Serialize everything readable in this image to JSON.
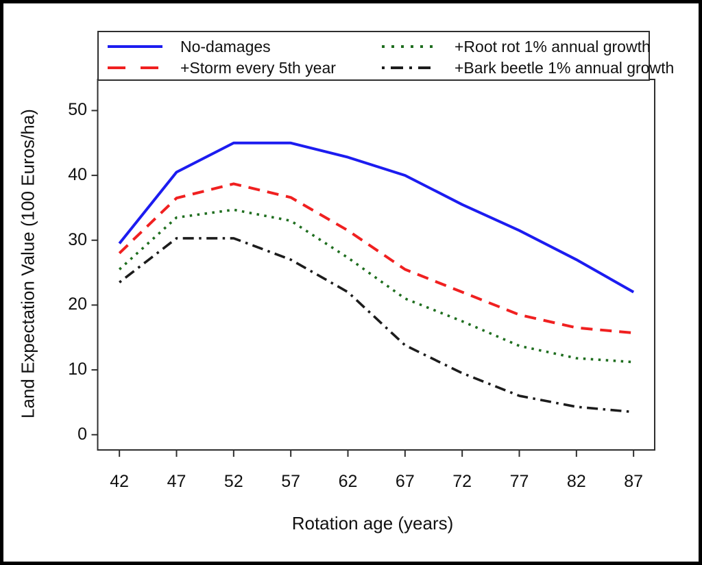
{
  "figure": {
    "background": "#ffffff",
    "outer_border_color": "#000000",
    "plot_box_color": "#2e2e2e"
  },
  "chart_data": {
    "type": "line",
    "title": "",
    "xlabel": "Rotation age (years)",
    "ylabel": "Land Expectation Value (100 Euros/ha)",
    "x": [
      42,
      47,
      52,
      57,
      62,
      67,
      72,
      77,
      82,
      87
    ],
    "x_ticks": [
      "42",
      "47",
      "52",
      "57",
      "62",
      "67",
      "72",
      "77",
      "82",
      "87"
    ],
    "y_ticks": [
      "0",
      "10",
      "20",
      "30",
      "40",
      "50"
    ],
    "y_tick_values": [
      0,
      10,
      20,
      30,
      40,
      50
    ],
    "xlim": [
      40.1,
      88.85
    ],
    "ylim": [
      -2.35,
      54.8
    ],
    "grid": false,
    "legend_position": "top inside framed box, two columns",
    "series": [
      {
        "name": "No-damages",
        "color": "#1c1cf0",
        "style": "solid",
        "values": [
          29.5,
          40.5,
          45.0,
          45.0,
          42.8,
          40.0,
          35.5,
          31.5,
          27.0,
          22.0
        ]
      },
      {
        "name": "+Storm every 5th year",
        "color": "#f02020",
        "style": "dashed",
        "values": [
          28.0,
          36.5,
          38.7,
          36.6,
          31.5,
          25.5,
          22.0,
          18.5,
          16.5,
          15.7
        ]
      },
      {
        "name": "+Root rot 1% annual growth",
        "color": "#1f6e1f",
        "style": "dotted",
        "values": [
          25.5,
          33.5,
          34.7,
          33.0,
          27.3,
          21.0,
          17.5,
          13.7,
          11.8,
          11.2
        ]
      },
      {
        "name": "+Bark beetle 1% annual growth",
        "color": "#1c1c1c",
        "style": "dashdot",
        "values": [
          23.5,
          30.3,
          30.3,
          27.0,
          22.0,
          13.8,
          9.5,
          6.0,
          4.3,
          3.5
        ]
      }
    ],
    "legend_display_order": [
      0,
      2,
      1,
      3
    ]
  }
}
